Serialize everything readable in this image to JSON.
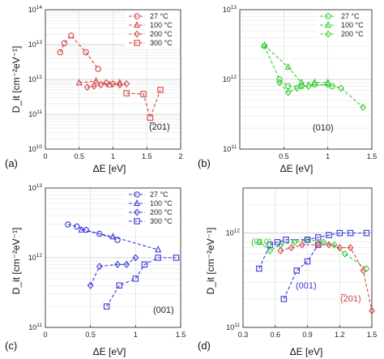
{
  "chart_data": [
    {
      "type": "line",
      "panel_label": "(a)",
      "xlabel": "ΔE [eV]",
      "ylabel": "D_it [cm⁻²eV⁻¹]",
      "xlim": [
        0,
        2
      ],
      "ylim": [
        10000000000.0,
        100000000000000.0
      ],
      "yscale": "log",
      "grid": true,
      "legend_position": "top-right",
      "x_ticks": [
        "0",
        "0.5",
        "1",
        "1.5",
        "2"
      ],
      "y_ticks": [
        {
          "base": "10",
          "exp": "10"
        },
        {
          "base": "10",
          "exp": "11"
        },
        {
          "base": "10",
          "exp": "12"
        },
        {
          "base": "10",
          "exp": "13"
        },
        {
          "base": "10",
          "exp": "14"
        }
      ],
      "annotation": {
        "text": "(̅201)",
        "color": "#222222"
      },
      "series": [
        {
          "name": "27 °C",
          "marker": "circle",
          "color": "#d64545",
          "x": [
            0.22,
            0.28,
            0.38,
            0.6,
            0.78
          ],
          "y": [
            6000000000000.0,
            11000000000000.0,
            18000000000000.0,
            6000000000000.0,
            2000000000000.0
          ]
        },
        {
          "name": "100 °C",
          "marker": "triangle",
          "color": "#d64545",
          "x": [
            0.5,
            0.75,
            0.95,
            1.1
          ],
          "y": [
            800000000000.0,
            900000000000.0,
            700000000000.0,
            800000000000.0
          ]
        },
        {
          "name": "200 °C",
          "marker": "diamond",
          "color": "#d64545",
          "x": [
            0.62,
            0.72,
            0.82,
            0.9,
            1.0,
            1.1,
            1.2
          ],
          "y": [
            600000000000.0,
            650000000000.0,
            700000000000.0,
            800000000000.0,
            750000000000.0,
            700000000000.0,
            750000000000.0
          ]
        },
        {
          "name": "300 °C",
          "marker": "square",
          "color": "#d64545",
          "x": [
            1.2,
            1.45,
            1.55,
            1.7
          ],
          "y": [
            400000000000.0,
            380000000000.0,
            80000000000.0,
            500000000000.0
          ]
        }
      ]
    },
    {
      "type": "line",
      "panel_label": "(b)",
      "xlabel": "ΔE [eV]",
      "ylabel": "",
      "xlim": [
        0,
        1.5
      ],
      "ylim": [
        100000000000.0,
        10000000000000.0
      ],
      "yscale": "log",
      "grid": true,
      "legend_position": "top-right",
      "x_ticks": [
        "0.5",
        "1",
        "1.5"
      ],
      "x_tick_values": [
        0.5,
        1,
        1.5
      ],
      "y_ticks": [
        {
          "base": "10",
          "exp": "11"
        },
        {
          "base": "10",
          "exp": "12"
        },
        {
          "base": "10",
          "exp": "13"
        }
      ],
      "annotation": {
        "text": "(010)",
        "color": "#222222"
      },
      "series": [
        {
          "name": "27 °C",
          "marker": "circle",
          "color": "#33cc33",
          "x": [
            0.28,
            0.45,
            0.55,
            0.7,
            0.85,
            1.05
          ],
          "y": [
            3000000000000.0,
            1000000000000.0,
            800000000000.0,
            800000000000.0,
            850000000000.0,
            800000000000.0
          ]
        },
        {
          "name": "100 °C",
          "marker": "triangle",
          "color": "#33cc33",
          "x": [
            0.28,
            0.55,
            0.7,
            0.85,
            1.0
          ],
          "y": [
            3100000000000.0,
            1500000000000.0,
            900000000000.0,
            900000000000.0,
            900000000000.0
          ]
        },
        {
          "name": "200 °C",
          "marker": "diamond",
          "color": "#33cc33",
          "x": [
            0.45,
            0.55,
            0.65,
            0.78,
            1.0,
            1.15,
            1.4
          ],
          "y": [
            900000000000.0,
            650000000000.0,
            750000000000.0,
            800000000000.0,
            850000000000.0,
            750000000000.0,
            400000000000.0
          ]
        }
      ]
    },
    {
      "type": "line",
      "panel_label": "(c)",
      "xlabel": "ΔE [eV]",
      "ylabel": "D_it [cm⁻²eV⁻¹]",
      "xlim": [
        0,
        1.5
      ],
      "ylim": [
        100000000000.0,
        10000000000000.0
      ],
      "yscale": "log",
      "grid": true,
      "legend_position": "top-right",
      "x_ticks": [
        "0",
        "0.5",
        "1",
        "1.5"
      ],
      "x_tick_values": [
        0,
        0.5,
        1,
        1.5
      ],
      "y_ticks": [
        {
          "base": "10",
          "exp": "11"
        },
        {
          "base": "10",
          "exp": "12"
        },
        {
          "base": "10",
          "exp": "13"
        }
      ],
      "annotation": {
        "text": "(001)",
        "color": "#222222"
      },
      "series": [
        {
          "name": "27 °C",
          "marker": "circle",
          "color": "#3a3ad4",
          "x": [
            0.25,
            0.35,
            0.45,
            0.6,
            0.8
          ],
          "y": [
            3000000000000.0,
            2800000000000.0,
            2500000000000.0,
            2200000000000.0,
            1800000000000.0
          ]
        },
        {
          "name": "100 °C",
          "marker": "triangle",
          "color": "#3a3ad4",
          "x": [
            0.4,
            0.75,
            1.25
          ],
          "y": [
            2500000000000.0,
            2000000000000.0,
            1300000000000.0
          ]
        },
        {
          "name": "200 °C",
          "marker": "diamond",
          "color": "#3a3ad4",
          "x": [
            0.5,
            0.6,
            0.8,
            0.9,
            1.0
          ],
          "y": [
            400000000000.0,
            750000000000.0,
            800000000000.0,
            800000000000.0,
            1000000000000.0
          ]
        },
        {
          "name": "300 °C",
          "marker": "square",
          "color": "#3a3ad4",
          "x": [
            0.68,
            0.82,
            1.0,
            1.1,
            1.25,
            1.45
          ],
          "y": [
            200000000000.0,
            400000000000.0,
            500000000000.0,
            800000000000.0,
            1000000000000.0,
            1000000000000.0
          ]
        }
      ]
    },
    {
      "type": "line",
      "panel_label": "(d)",
      "xlabel": "ΔE [eV]",
      "ylabel": "D_it [cm⁻²eV⁻¹]",
      "xlim": [
        0.3,
        1.5
      ],
      "ylim": [
        100000000000.0,
        3000000000000.0
      ],
      "yscale": "log",
      "grid": true,
      "legend_position": "",
      "x_ticks": [
        "0.3",
        "0.6",
        "0.9",
        "1.2",
        "1.5"
      ],
      "x_tick_values": [
        0.3,
        0.6,
        0.9,
        1.2,
        1.5
      ],
      "y_ticks": [
        {
          "base": "10",
          "exp": "11"
        },
        {
          "base": "10",
          "exp": "12"
        }
      ],
      "annotations": [
        {
          "text": "(010)",
          "color": "#33cc33"
        },
        {
          "text": "(001)",
          "color": "#3a3ad4"
        },
        {
          "text": "(̅201)",
          "color": "#d64545"
        }
      ],
      "series": [
        {
          "marker": "diamond",
          "color": "#33cc33",
          "x": [
            0.45,
            0.55,
            0.65,
            0.78,
            0.9,
            1.05,
            1.15,
            1.25,
            1.45
          ],
          "y": [
            800000000000.0,
            650000000000.0,
            750000000000.0,
            800000000000.0,
            850000000000.0,
            800000000000.0,
            750000000000.0,
            600000000000.0,
            420000000000.0
          ]
        },
        {
          "marker": "square",
          "color": "#3a3ad4",
          "x": [
            0.45,
            0.55,
            0.62,
            0.7,
            0.9,
            1.0,
            1.1,
            1.2,
            1.3,
            1.45
          ],
          "y": [
            420000000000.0,
            750000000000.0,
            800000000000.0,
            850000000000.0,
            850000000000.0,
            900000000000.0,
            950000000000.0,
            1000000000000.0,
            1000000000000.0,
            1000000000000.0
          ]
        },
        {
          "marker": "square",
          "color": "#3a3ad4",
          "x": [
            0.68,
            0.8,
            0.9,
            1.0
          ],
          "y": [
            200000000000.0,
            400000000000.0,
            500000000000.0,
            750000000000.0
          ]
        },
        {
          "marker": "diamond",
          "color": "#d64545",
          "x": [
            0.65,
            0.75,
            0.85,
            1.0,
            1.1,
            1.2,
            1.3,
            1.42,
            1.5
          ],
          "y": [
            650000000000.0,
            700000000000.0,
            750000000000.0,
            750000000000.0,
            750000000000.0,
            700000000000.0,
            700000000000.0,
            400000000000.0,
            150000000000.0
          ]
        }
      ]
    }
  ]
}
